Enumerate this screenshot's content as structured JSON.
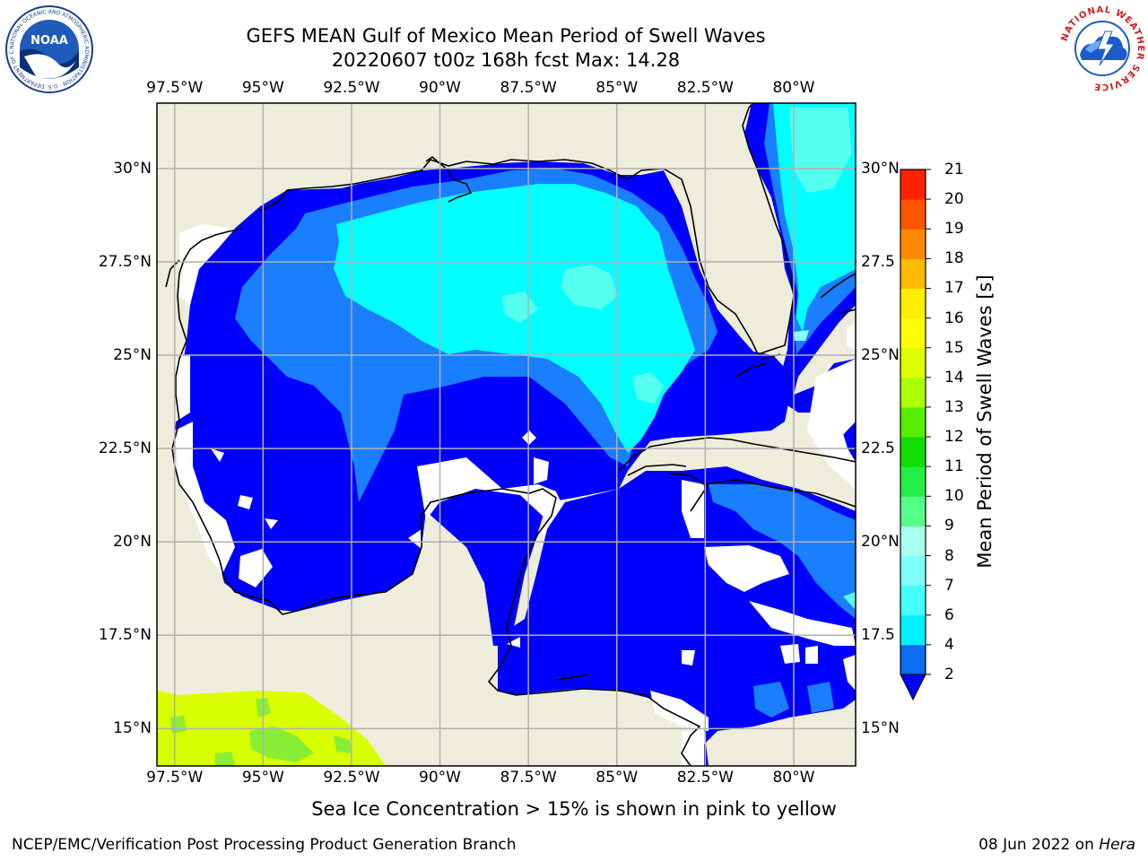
{
  "header": {
    "title_line1": "GEFS MEAN Gulf of Mexico Mean Period of Swell Waves",
    "title_line2": "20220607 t00z 168h fcst   Max: 14.28"
  },
  "logos": {
    "left": {
      "name": "NOAA",
      "text": "NOAA",
      "ring_text": "NATIONAL OCEANIC AND ATMOSPHERIC ADMINISTRATION · U.S. DEPARTMENT OF COMMERCE"
    },
    "right": {
      "name": "National Weather Service",
      "ring_text": "NATIONAL WEATHER SERVICE"
    }
  },
  "map": {
    "lon_labels": [
      "97.5°W",
      "95°W",
      "92.5°W",
      "90°W",
      "87.5°W",
      "85°W",
      "82.5°W",
      "80°W"
    ],
    "lat_labels_left": [
      "30°N",
      "27.5°N",
      "25°N",
      "22.5°N",
      "20°N",
      "17.5°N",
      "15°N"
    ],
    "lat_labels_right": [
      "30°N",
      "27.5",
      "25°N",
      "22.5",
      "20°N",
      "17.5",
      "15°N"
    ],
    "extent": {
      "lon_min": -98.0,
      "lon_max": -78.25,
      "lat_min": 14.0,
      "lat_max": 31.75
    },
    "colors": {
      "land": "#eeeddc",
      "coast": "#000000",
      "grid": "#b0b0b0",
      "missing": "#ffffff"
    }
  },
  "colorbar": {
    "label": "Mean Period of Swell Waves [s]",
    "ticks": [
      "2",
      "4",
      "6",
      "7",
      "8",
      "9",
      "10",
      "11",
      "12",
      "13",
      "14",
      "15",
      "16",
      "17",
      "18",
      "19",
      "20",
      "21"
    ],
    "colors": [
      "#0a6cf0",
      "#00f0ff",
      "#44ffff",
      "#80ffff",
      "#aaffee",
      "#55ff88",
      "#22ee44",
      "#11dd00",
      "#55ee00",
      "#aaff00",
      "#ddff00",
      "#ffff00",
      "#ffee00",
      "#ffbb00",
      "#ff8800",
      "#ff5500",
      "#ff2200",
      "#ff0000"
    ],
    "extend_color": "#0000ff"
  },
  "field_colors": {
    "lt4": "#0000ff",
    "c4": "#1a7fff",
    "c6": "#00ffff",
    "c7": "#55ffee",
    "c8": "#88ffee",
    "ice_yellow": "#d8ff00",
    "ice_green": "#88ee33"
  },
  "note": "Sea Ice Concentration > 15% is shown in pink to yellow",
  "footer": {
    "left": "NCEP/EMC/Verification Post Processing Product Generation Branch",
    "right_date": "08 Jun 2022 on ",
    "right_host": "Hera"
  }
}
